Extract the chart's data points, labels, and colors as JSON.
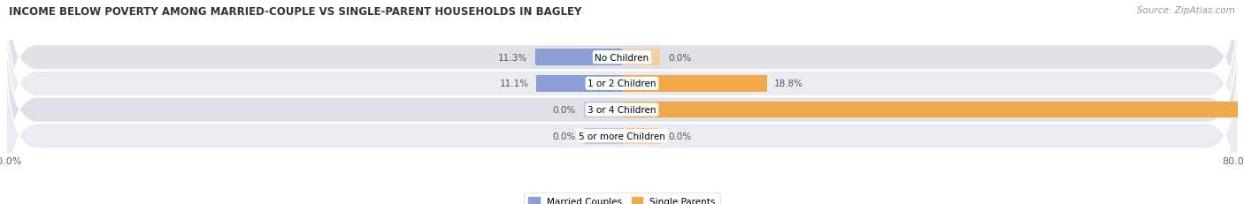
{
  "title": "INCOME BELOW POVERTY AMONG MARRIED-COUPLE VS SINGLE-PARENT HOUSEHOLDS IN BAGLEY",
  "source": "Source: ZipAtlas.com",
  "categories": [
    "No Children",
    "1 or 2 Children",
    "3 or 4 Children",
    "5 or more Children"
  ],
  "married_values": [
    11.3,
    11.1,
    0.0,
    0.0
  ],
  "single_values": [
    0.0,
    18.8,
    80.0,
    0.0
  ],
  "married_color": "#8b9fd4",
  "married_color_light": "#b8c4e4",
  "single_color": "#f0a84a",
  "single_color_light": "#f5cfa0",
  "row_bg_colors": [
    "#e0e0e8",
    "#ebebf2"
  ],
  "x_min": -80.0,
  "x_max": 80.0,
  "legend_labels": [
    "Married Couples",
    "Single Parents"
  ],
  "min_bar_stub": 5.0,
  "title_fontsize": 8.5,
  "source_fontsize": 7.5,
  "label_fontsize": 7.5,
  "category_fontsize": 7.5,
  "tick_fontsize": 8
}
